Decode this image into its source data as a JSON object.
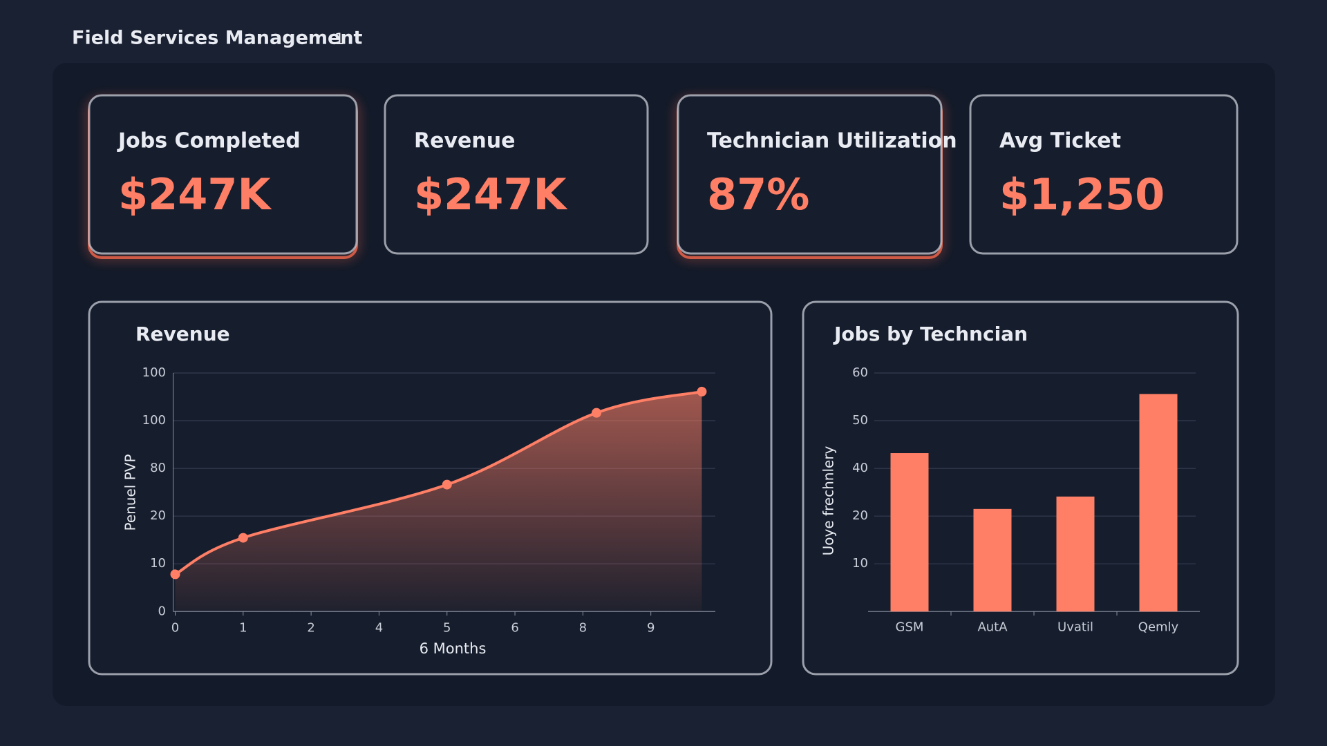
{
  "header": {
    "title": "Field Services Management",
    "badge": "1"
  },
  "kpis": [
    {
      "label": "Jobs Completed",
      "value": "$247K"
    },
    {
      "label": "Revenue",
      "value": "$247K"
    },
    {
      "label": "Technician Utilization",
      "value": "87%"
    },
    {
      "label": "Avg Ticket",
      "value": "$1,250"
    }
  ],
  "chart_data": [
    {
      "type": "line",
      "title": "Revenue",
      "y_label": "Penuel PVP",
      "x_label": "6 Months",
      "x": [
        0,
        1,
        4,
        6.2,
        7.75
      ],
      "values": [
        15.6,
        30.9,
        53.2,
        83.3,
        92.2
      ],
      "color": "#ff7f66",
      "xlim": [
        0,
        8
      ],
      "xticks": [
        0,
        1,
        2,
        {
          "value": 3,
          "label": "4"
        },
        {
          "value": 4,
          "label": "5"
        },
        {
          "value": 5,
          "label": "6"
        },
        {
          "value": 6,
          "label": "8"
        },
        {
          "value": 7,
          "label": "9"
        }
      ],
      "ylim": [
        0,
        100
      ],
      "yticks": [
        0,
        {
          "value": 20,
          "label": "10"
        },
        {
          "value": 40,
          "label": "20"
        },
        {
          "value": 60,
          "label": "80"
        },
        {
          "value": 80,
          "label": "100"
        },
        100
      ],
      "grid": true
    },
    {
      "type": "bar",
      "title": "Jobs by Techncian",
      "y_label": "Uoye frechnlery",
      "categories": [
        "GSM",
        "AutA",
        "Uvatil",
        "Qemly"
      ],
      "values": [
        33.2,
        21.5,
        24.1,
        45.6
      ],
      "color": "#ff7f66",
      "ylim": [
        0,
        50
      ],
      "yticks": [
        10,
        20,
        {
          "value": 30,
          "label": "40"
        },
        {
          "value": 40,
          "label": "50"
        },
        {
          "value": 50,
          "label": "60"
        }
      ],
      "grid": true
    }
  ]
}
